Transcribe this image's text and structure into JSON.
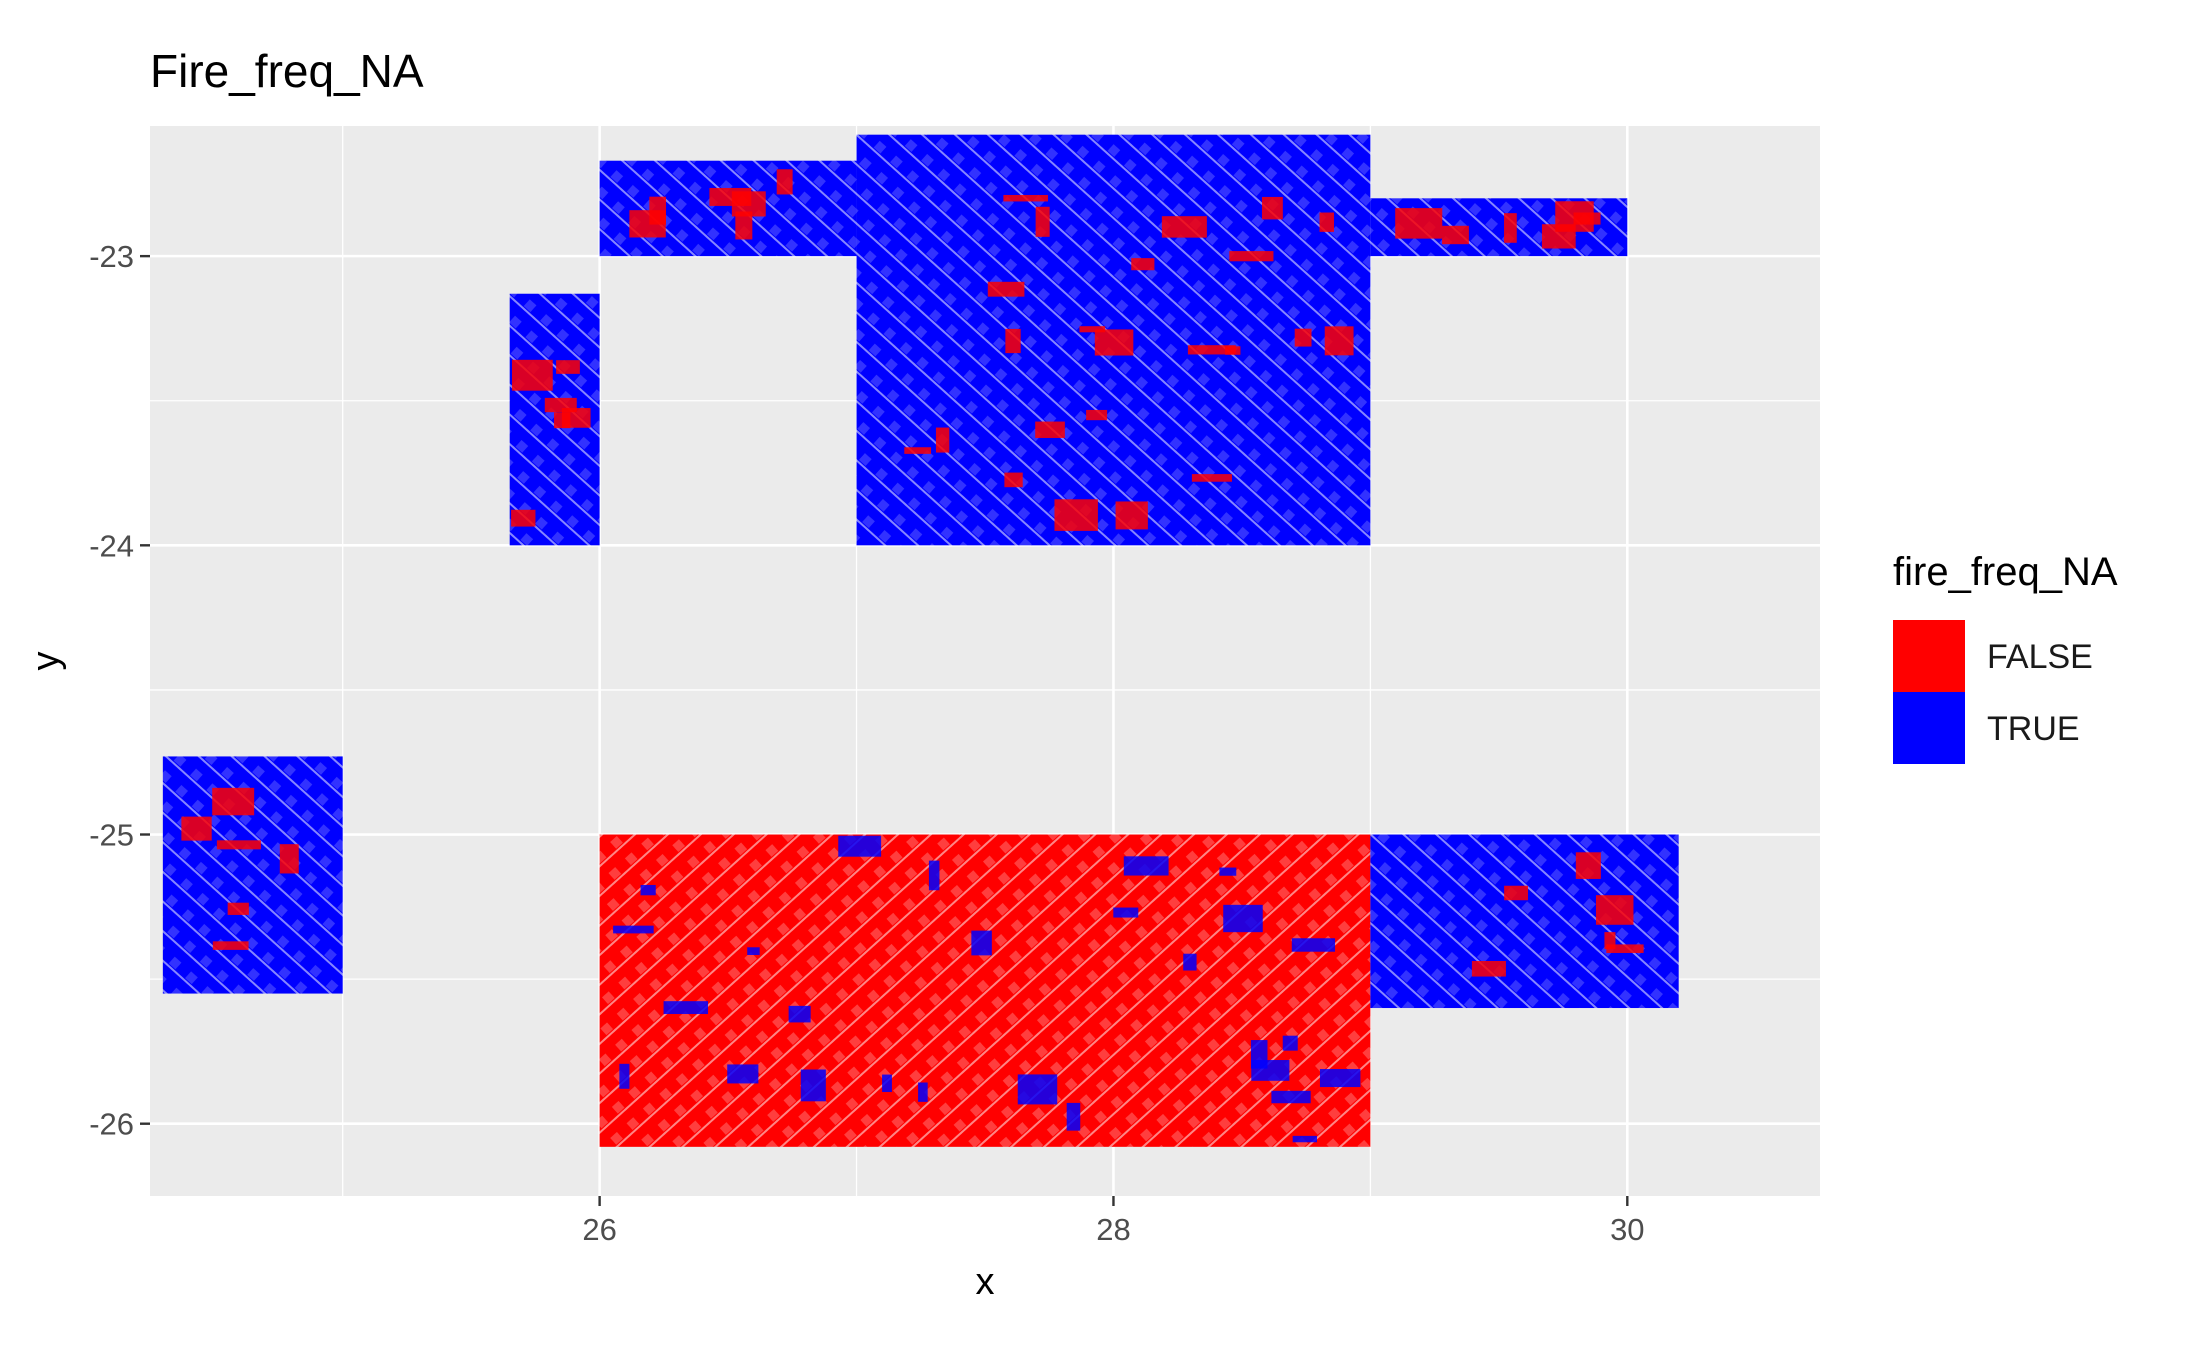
{
  "chart_data": {
    "type": "heatmap",
    "title": "Fire_freq_NA",
    "xlabel": "x",
    "ylabel": "y",
    "xlim": [
      24.25,
      30.75
    ],
    "ylim": [
      -26.25,
      -22.55
    ],
    "x_ticks": [
      26,
      28,
      30
    ],
    "x_tick_labels": [
      "26",
      "28",
      "30"
    ],
    "y_ticks": [
      -23,
      -24,
      -25,
      -26
    ],
    "y_tick_labels": [
      "-23",
      "-24",
      "-25",
      "-26"
    ],
    "grid": true,
    "legend": {
      "title": "fire_freq_NA",
      "position": "right",
      "entries": [
        {
          "label": "FALSE",
          "color": "#ff0000"
        },
        {
          "label": "TRUE",
          "color": "#0000ff"
        }
      ]
    },
    "colors": {
      "FALSE": "#ff0000",
      "TRUE": "#0000ff",
      "panel": "#ebebeb",
      "grid": "#ffffff"
    },
    "tiles": [
      {
        "name": "tile-west",
        "x": [
          24.3,
          25.0
        ],
        "y": [
          -25.55,
          -24.73
        ],
        "dominant": "TRUE"
      },
      {
        "name": "tile-north-west",
        "x": [
          25.65,
          26.0
        ],
        "y": [
          -24.0,
          -23.13
        ],
        "dominant": "TRUE"
      },
      {
        "name": "tile-north-strip-26",
        "x": [
          26.0,
          27.0
        ],
        "y": [
          -23.0,
          -22.67
        ],
        "dominant": "TRUE"
      },
      {
        "name": "tile-north-main",
        "x": [
          27.0,
          29.0
        ],
        "y": [
          -24.0,
          -22.58
        ],
        "dominant": "TRUE"
      },
      {
        "name": "tile-north-strip-29",
        "x": [
          29.0,
          30.0
        ],
        "y": [
          -23.0,
          -22.8
        ],
        "dominant": "TRUE"
      },
      {
        "name": "tile-south-main",
        "x": [
          26.0,
          29.0
        ],
        "y": [
          -26.08,
          -25.0
        ],
        "dominant": "FALSE"
      },
      {
        "name": "tile-south-east",
        "x": [
          29.0,
          30.2
        ],
        "y": [
          -25.6,
          -25.0
        ],
        "dominant": "TRUE"
      }
    ]
  }
}
